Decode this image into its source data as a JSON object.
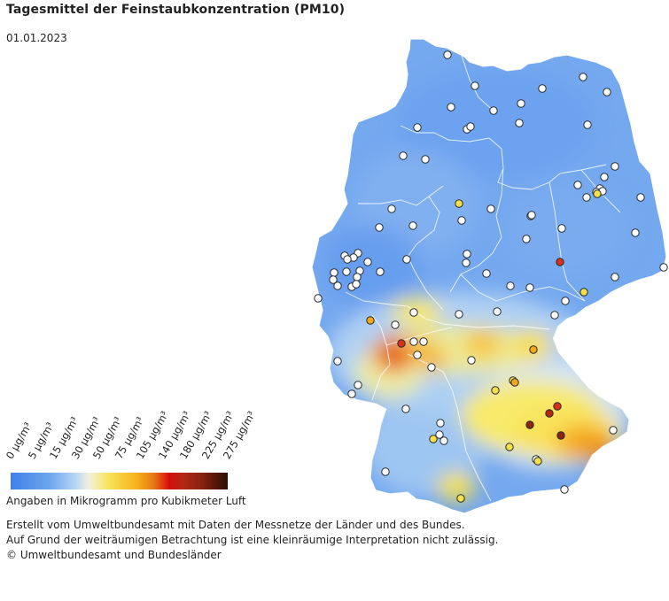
{
  "title": "Tagesmittel der Feinstaubkonzentration (PM10)",
  "date": "01.01.2023",
  "legend": {
    "ticks": [
      "0 µg/m³",
      "5 µg/m³",
      "15 µg/m³",
      "30 µg/m³",
      "50 µg/m³",
      "75 µg/m³",
      "105 µg/m³",
      "140 µg/m³",
      "180 µg/m³",
      "225 µg/m³",
      "275 µg/m³"
    ],
    "caption": "Angaben in Mikrogramm pro Kubikmeter Luft"
  },
  "footer": {
    "line1": "Erstellt vom Umweltbundesamt mit Daten der Messnetze der Länder und des Bundes.",
    "line2": "Auf Grund der weiträumigen Betrachtung ist eine kleinräumige Interpretation nicht zulässig.",
    "line3": "© Umweltbundesamt und Bundesländer"
  },
  "colors": {
    "background_low": "#6ea6ee",
    "station_low": "#ffffff",
    "station_medium": "#f5e04a",
    "station_elevated": "#f4a71c",
    "station_high": "#d7301f",
    "station_very_high": "#8d2411"
  }
}
